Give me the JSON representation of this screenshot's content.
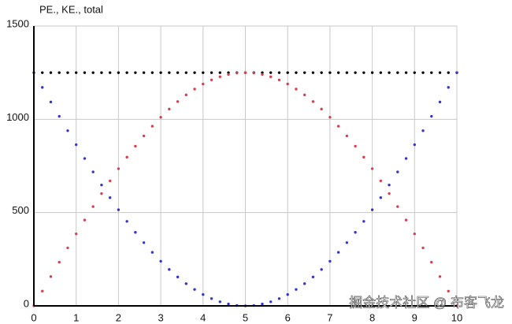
{
  "chart_data": {
    "type": "scatter",
    "title": "PE., KE., total",
    "x": [
      0,
      0.2,
      0.4,
      0.6,
      0.8,
      1,
      1.2,
      1.4,
      1.6,
      1.8,
      2,
      2.2,
      2.4,
      2.6,
      2.8,
      3,
      3.2,
      3.4,
      3.6,
      3.8,
      4,
      4.2,
      4.4,
      4.6,
      4.8,
      5,
      5.2,
      5.4,
      5.6,
      5.8,
      6,
      6.2,
      6.4,
      6.6,
      6.8,
      7,
      7.2,
      7.4,
      7.6,
      7.8,
      8,
      8.2,
      8.4,
      8.6,
      8.8,
      9,
      9.2,
      9.4,
      9.6,
      9.8,
      10
    ],
    "series": [
      {
        "color": "#000000",
        "values": [
          1250,
          1250,
          1250,
          1250,
          1250,
          1250,
          1250,
          1250,
          1250,
          1250,
          1250,
          1250,
          1250,
          1250,
          1250,
          1250,
          1250,
          1250,
          1250,
          1250,
          1250,
          1250,
          1250,
          1250,
          1250,
          1250,
          1250,
          1250,
          1250,
          1250,
          1250,
          1250,
          1250,
          1250,
          1250,
          1250,
          1250,
          1250,
          1250,
          1250,
          1250,
          1250,
          1250,
          1250,
          1250,
          1250,
          1250,
          1250,
          1250,
          1250,
          1250
        ]
      },
      {
        "color": "#d9404f",
        "values": [
          0,
          79,
          157,
          234,
          311,
          386,
          460,
          532,
          602,
          670,
          735,
          797,
          856,
          911,
          963,
          1011,
          1055,
          1095,
          1131,
          1162,
          1189,
          1211,
          1228,
          1240,
          1248,
          1250,
          1248,
          1240,
          1228,
          1211,
          1189,
          1162,
          1131,
          1095,
          1055,
          1011,
          963,
          911,
          856,
          797,
          735,
          670,
          602,
          532,
          460,
          386,
          311,
          234,
          157,
          79,
          0
        ]
      },
      {
        "color": "#3535c8",
        "values": [
          1250,
          1171,
          1093,
          1016,
          939,
          864,
          790,
          718,
          648,
          580,
          515,
          453,
          394,
          339,
          287,
          239,
          195,
          155,
          119,
          88,
          61,
          39,
          22,
          10,
          2,
          0,
          2,
          10,
          22,
          39,
          61,
          88,
          119,
          155,
          195,
          239,
          287,
          339,
          394,
          453,
          515,
          580,
          648,
          718,
          790,
          864,
          939,
          1016,
          1093,
          1171,
          1250
        ]
      }
    ],
    "xlim": [
      0,
      10
    ],
    "xticks": [
      0,
      1,
      2,
      3,
      4,
      5,
      6,
      7,
      8,
      9,
      10
    ],
    "ylim": [
      0,
      1500
    ],
    "yticks": [
      0,
      500,
      1000,
      1500
    ],
    "grid": true,
    "watermark": "掘金技术社区 @ 布客飞龙"
  }
}
